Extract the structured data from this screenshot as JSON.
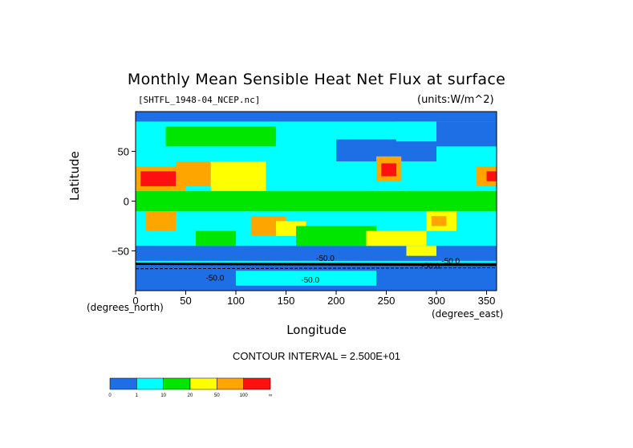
{
  "chart_data": {
    "type": "heatmap",
    "title": "Monthly Mean Sensible Heat Net Flux at surface",
    "subtitle_left": "[SHTFL_1948-04_NCEP.nc]",
    "subtitle_right": "(units:W/m^2)",
    "xlabel": "Longitude",
    "ylabel": "Latitude",
    "x_units": "(degrees_east)",
    "y_units": "(degrees_north)",
    "xlim": [
      0,
      360
    ],
    "ylim": [
      -90,
      90
    ],
    "x_ticks": [
      0,
      50,
      100,
      150,
      200,
      250,
      300,
      350
    ],
    "y_ticks": [
      -50,
      0,
      50
    ],
    "contour_interval": "CONTOUR INTERVAL = 2.500E+01",
    "contour_labels": [
      "-50.0",
      "-50.0",
      "-50.0",
      "-50.0",
      "-50.0"
    ],
    "colorbar": {
      "ticks": [
        "0",
        "1",
        "10",
        "20",
        "50",
        "100",
        "∞"
      ],
      "colors": [
        "#1e6fe6",
        "#00ffff",
        "#00e600",
        "#ffff00",
        "#ffa500",
        "#ff1010"
      ]
    },
    "regions": [
      {
        "lon": [
          0,
          360
        ],
        "lat": [
          -90,
          90
        ],
        "level": 1
      },
      {
        "lon": [
          0,
          360
        ],
        "lat": [
          -90,
          -62
        ],
        "level": 0
      },
      {
        "lon": [
          0,
          360
        ],
        "lat": [
          -60,
          -45
        ],
        "level": 0
      },
      {
        "lon": [
          0,
          360
        ],
        "lat": [
          80,
          90
        ],
        "level": 0
      },
      {
        "lon": [
          300,
          360
        ],
        "lat": [
          55,
          80
        ],
        "level": 0
      },
      {
        "lon": [
          200,
          300
        ],
        "lat": [
          40,
          62
        ],
        "level": 0
      },
      {
        "lon": [
          260,
          300
        ],
        "lat": [
          60,
          80
        ],
        "level": 1
      },
      {
        "lon": [
          30,
          140
        ],
        "lat": [
          55,
          75
        ],
        "level": 2
      },
      {
        "lon": [
          0,
          30
        ],
        "lat": [
          45,
          70
        ],
        "level": 1
      },
      {
        "lon": [
          0,
          50
        ],
        "lat": [
          10,
          35
        ],
        "level": 4
      },
      {
        "lon": [
          5,
          40
        ],
        "lat": [
          15,
          30
        ],
        "level": 5
      },
      {
        "lon": [
          40,
          75
        ],
        "lat": [
          15,
          40
        ],
        "level": 4
      },
      {
        "lon": [
          75,
          130
        ],
        "lat": [
          10,
          40
        ],
        "level": 3
      },
      {
        "lon": [
          240,
          265
        ],
        "lat": [
          20,
          45
        ],
        "level": 4
      },
      {
        "lon": [
          245,
          260
        ],
        "lat": [
          25,
          38
        ],
        "level": 5
      },
      {
        "lon": [
          340,
          360
        ],
        "lat": [
          15,
          35
        ],
        "level": 4
      },
      {
        "lon": [
          350,
          360
        ],
        "lat": [
          20,
          30
        ],
        "level": 5
      },
      {
        "lon": [
          10,
          40
        ],
        "lat": [
          -30,
          -10
        ],
        "level": 4
      },
      {
        "lon": [
          115,
          150
        ],
        "lat": [
          -35,
          -15
        ],
        "level": 4
      },
      {
        "lon": [
          140,
          170
        ],
        "lat": [
          -35,
          -20
        ],
        "level": 3
      },
      {
        "lon": [
          290,
          320
        ],
        "lat": [
          -30,
          -5
        ],
        "level": 3
      },
      {
        "lon": [
          295,
          310
        ],
        "lat": [
          -25,
          -15
        ],
        "level": 4
      },
      {
        "lon": [
          0,
          360
        ],
        "lat": [
          -10,
          10
        ],
        "level": 2
      },
      {
        "lon": [
          160,
          240
        ],
        "lat": [
          -45,
          -25
        ],
        "level": 2
      },
      {
        "lon": [
          230,
          290
        ],
        "lat": [
          -45,
          -30
        ],
        "level": 3
      },
      {
        "lon": [
          60,
          100
        ],
        "lat": [
          -45,
          -30
        ],
        "level": 2
      },
      {
        "lon": [
          270,
          300
        ],
        "lat": [
          -55,
          -45
        ],
        "level": 3
      },
      {
        "lon": [
          100,
          240
        ],
        "lat": [
          -85,
          -70
        ],
        "level": 1
      }
    ]
  }
}
